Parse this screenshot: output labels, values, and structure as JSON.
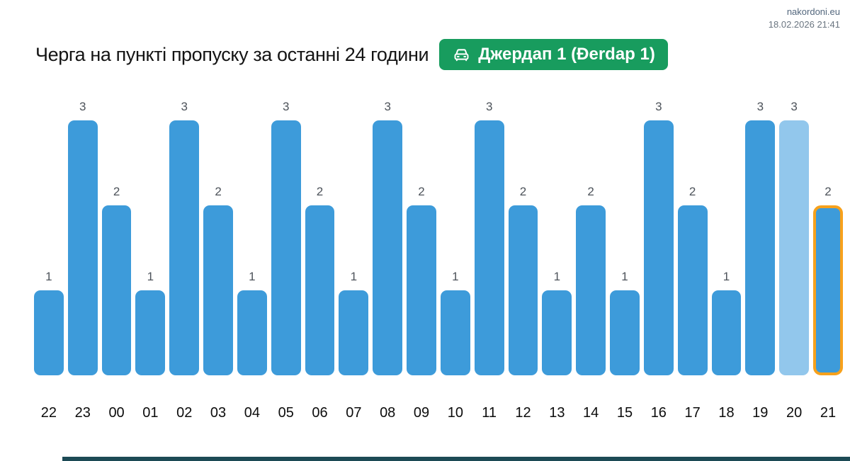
{
  "header": {
    "site": "nakordoni.eu",
    "timestamp": "18.02.2026 21:41"
  },
  "title": "Черга на пункті пропуску за останні 24 години",
  "badge": {
    "label": "Джердап 1 (Đerdap 1)",
    "icon": "car-icon",
    "background_color": "#189c5e",
    "text_color": "#ffffff"
  },
  "chart_data": {
    "type": "bar",
    "title": "Черга на пункті пропуску за останні 24 години",
    "xlabel": "",
    "ylabel": "",
    "ylim": [
      0,
      3
    ],
    "grid": false,
    "legend": false,
    "data_labels": true,
    "categories": [
      "22",
      "23",
      "00",
      "01",
      "02",
      "03",
      "04",
      "05",
      "06",
      "07",
      "08",
      "09",
      "10",
      "11",
      "12",
      "13",
      "14",
      "15",
      "16",
      "17",
      "18",
      "19",
      "20",
      "21"
    ],
    "values": [
      1,
      3,
      2,
      1,
      3,
      2,
      1,
      3,
      2,
      1,
      3,
      2,
      1,
      3,
      2,
      1,
      2,
      1,
      3,
      2,
      1,
      3,
      3,
      2
    ],
    "bar_styles": [
      "normal",
      "normal",
      "normal",
      "normal",
      "normal",
      "normal",
      "normal",
      "normal",
      "normal",
      "normal",
      "normal",
      "normal",
      "normal",
      "normal",
      "normal",
      "normal",
      "normal",
      "normal",
      "normal",
      "normal",
      "normal",
      "normal",
      "light",
      "highlight"
    ],
    "colors": {
      "bar": "#3d9bda",
      "bar_light": "#92c7ec",
      "highlight_border": "#f7a11c",
      "value_label": "#4d535a",
      "hour_label": "#0c0c0c"
    }
  },
  "footer": {
    "strip_color": "#1c4a55"
  }
}
